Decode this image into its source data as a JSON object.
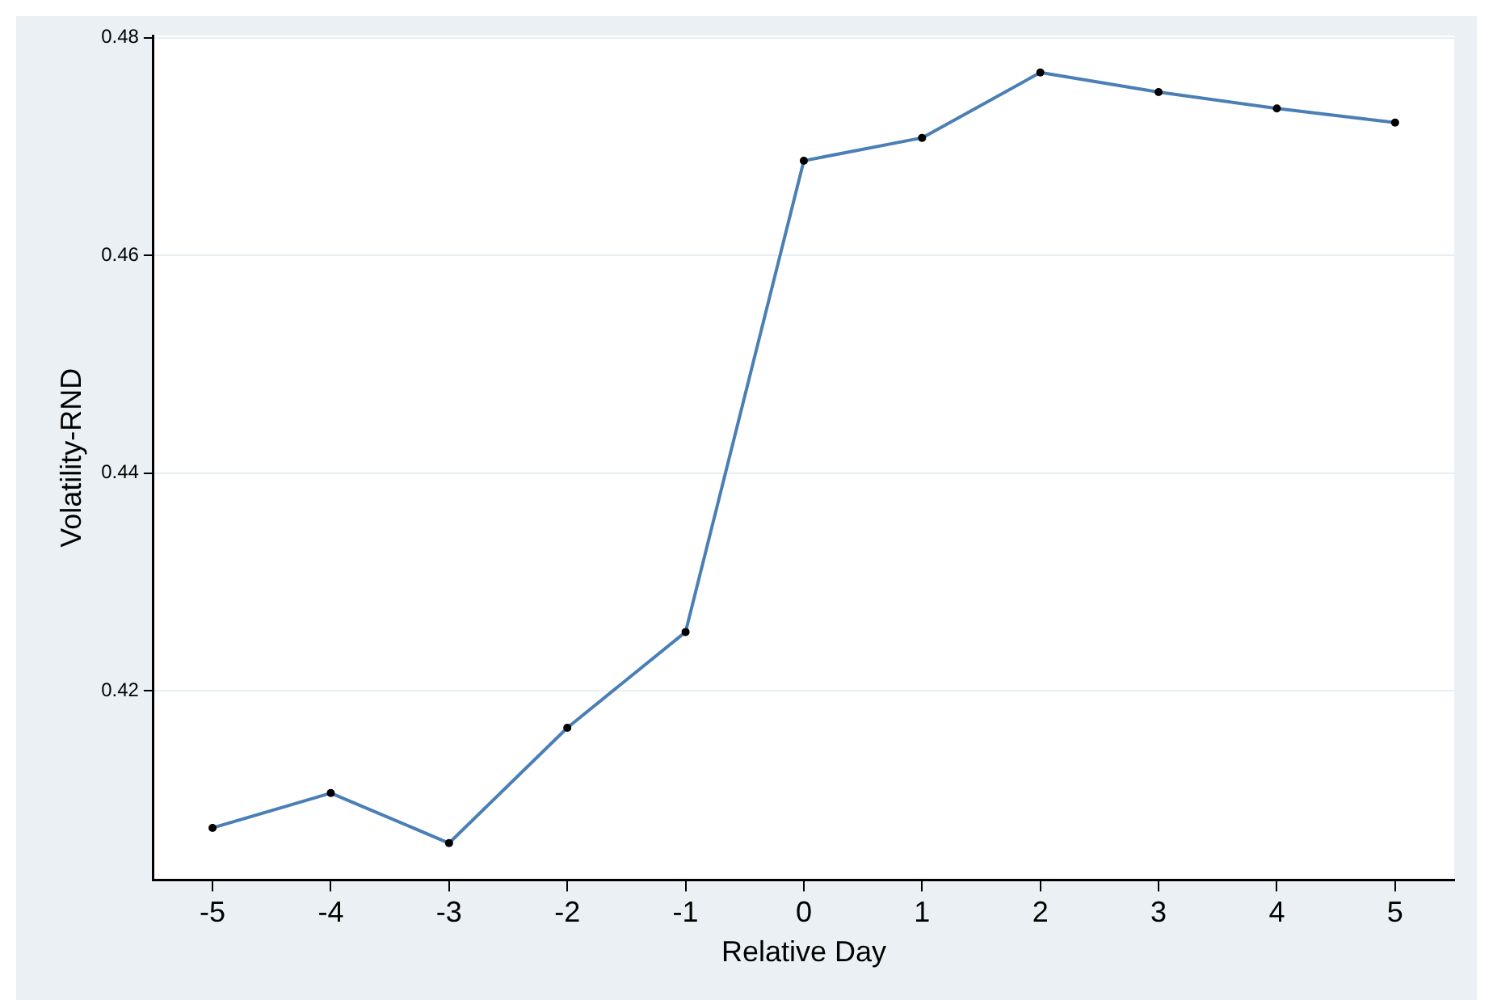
{
  "chart_data": {
    "type": "line",
    "xlabel": "Relative Day",
    "ylabel": "Volatility-RND",
    "x": [
      -5,
      -4,
      -3,
      -2,
      -1,
      0,
      1,
      2,
      3,
      4,
      5
    ],
    "series": [
      {
        "color": "#4a7fb5",
        "values": [
          0.4074,
          0.4106,
          0.406,
          0.4166,
          0.4254,
          0.4687,
          0.4708,
          0.4768,
          0.475,
          0.4735,
          0.4722
        ]
      }
    ],
    "xlim": [
      -5.5,
      5.5
    ],
    "xticks": [
      -5,
      -4,
      -3,
      -2,
      -1,
      0,
      1,
      2,
      3,
      4,
      5
    ],
    "ylim": [
      0.4026,
      0.4802
    ],
    "yticks": [
      0.42,
      0.44,
      0.46,
      0.48
    ],
    "grid": "y",
    "legend": false,
    "marker": "circle",
    "line_style": "solid"
  }
}
